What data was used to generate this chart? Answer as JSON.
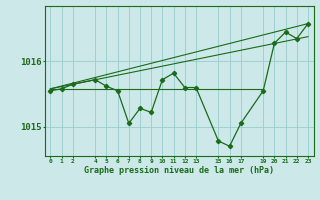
{
  "xlabel": "Graphe pression niveau de la mer (hPa)",
  "background_color": "#cce8e8",
  "grid_color": "#99cccc",
  "line_color": "#1a6b1a",
  "x_ticks": [
    0,
    1,
    2,
    4,
    5,
    6,
    7,
    8,
    9,
    10,
    11,
    12,
    13,
    15,
    16,
    17,
    19,
    20,
    21,
    22,
    23
  ],
  "ylim": [
    1014.55,
    1016.85
  ],
  "yticks": [
    1015,
    1016
  ],
  "main_data_x": [
    0,
    1,
    2,
    4,
    5,
    6,
    7,
    8,
    9,
    10,
    11,
    12,
    13,
    15,
    16,
    17,
    19,
    20,
    21,
    22,
    23
  ],
  "main_data_y": [
    1015.55,
    1015.58,
    1015.65,
    1015.72,
    1015.62,
    1015.55,
    1015.05,
    1015.28,
    1015.22,
    1015.72,
    1015.82,
    1015.6,
    1015.6,
    1014.78,
    1014.7,
    1015.05,
    1015.55,
    1016.28,
    1016.45,
    1016.35,
    1016.58
  ],
  "line1_x": [
    0,
    23
  ],
  "line1_y": [
    1015.58,
    1016.58
  ],
  "line2_x": [
    0,
    23
  ],
  "line2_y": [
    1015.58,
    1016.38
  ],
  "line3_x": [
    0,
    19
  ],
  "line3_y": [
    1015.58,
    1015.58
  ]
}
